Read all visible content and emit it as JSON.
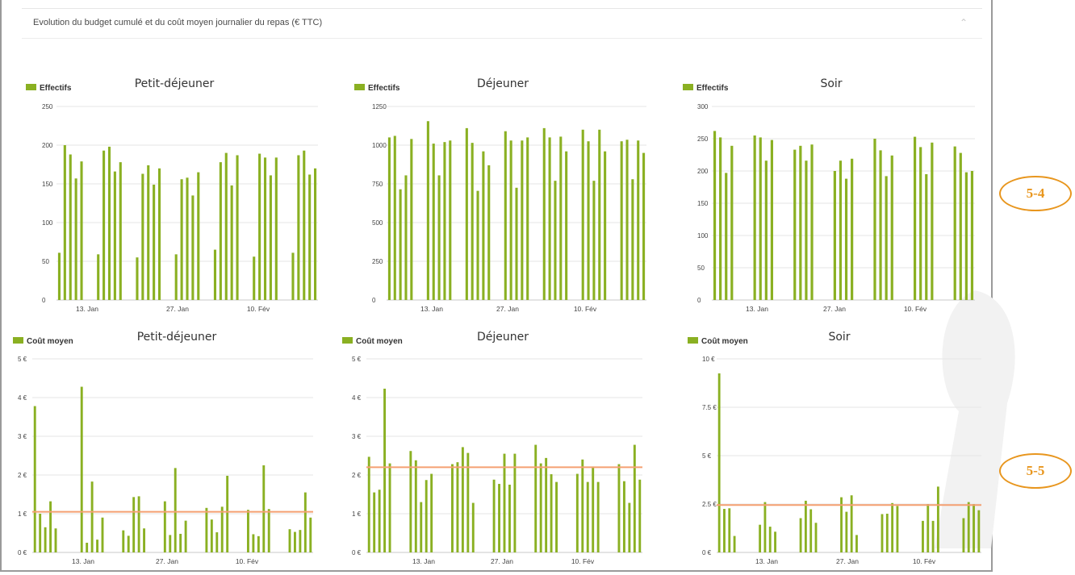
{
  "card": {
    "title": "Evolution du budget cumulé et du coût moyen journalier du repas (€ TTC)",
    "collapse_icon": "chevron-up-icon"
  },
  "callouts": [
    "5-4",
    "5-5"
  ],
  "colors": {
    "bar": "#8ab022",
    "avg_line": "#f5a072",
    "grid": "#e6e6e6"
  },
  "chart_data": [
    {
      "id": "eff-pdj",
      "type": "bar",
      "title": "Petit-déjeuner",
      "legend": "Effectifs",
      "y_ticks": [
        0,
        50,
        100,
        150,
        200,
        250
      ],
      "y_tick_labels": [
        "0",
        "50",
        "100",
        "150",
        "200",
        "250"
      ],
      "ylim": [
        0,
        250
      ],
      "x_ticks": [
        "13. Jan",
        "27. Jan",
        "10. Fév"
      ],
      "values": [
        61,
        200,
        188,
        157,
        179,
        null,
        null,
        59,
        193,
        198,
        166,
        178,
        null,
        null,
        55,
        163,
        174,
        149,
        170,
        null,
        null,
        59,
        156,
        158,
        135,
        165,
        null,
        null,
        65,
        178,
        190,
        148,
        187,
        null,
        null,
        56,
        189,
        184,
        161,
        184,
        null,
        null,
        61,
        187,
        193,
        162,
        170
      ]
    },
    {
      "id": "eff-dej",
      "type": "bar",
      "title": "Déjeuner",
      "legend": "Effectifs",
      "y_ticks": [
        0,
        250,
        500,
        750,
        1000,
        1250
      ],
      "y_tick_labels": [
        "0",
        "250",
        "500",
        "750",
        "1000",
        "1250"
      ],
      "ylim": [
        0,
        1250
      ],
      "x_ticks": [
        "13. Jan",
        "27. Jan",
        "10. Fév"
      ],
      "values": [
        1050,
        1060,
        715,
        805,
        1040,
        null,
        null,
        1155,
        1010,
        805,
        1020,
        1030,
        null,
        null,
        1110,
        1015,
        705,
        960,
        870,
        null,
        null,
        1090,
        1030,
        725,
        1030,
        1050,
        null,
        null,
        1110,
        1050,
        770,
        1055,
        960,
        null,
        null,
        1100,
        1025,
        770,
        1100,
        960,
        null,
        null,
        1025,
        1035,
        780,
        1030,
        950
      ]
    },
    {
      "id": "eff-soir",
      "type": "bar",
      "title": "Soir",
      "legend": "Effectifs",
      "y_ticks": [
        0,
        50,
        100,
        150,
        200,
        250,
        300
      ],
      "y_tick_labels": [
        "0",
        "50",
        "100",
        "150",
        "200",
        "250",
        "300"
      ],
      "ylim": [
        0,
        300
      ],
      "x_ticks": [
        "13. Jan",
        "27. Jan",
        "10. Fév"
      ],
      "values": [
        262,
        252,
        197,
        239,
        null,
        null,
        null,
        255,
        252,
        216,
        248,
        null,
        null,
        null,
        233,
        239,
        216,
        241,
        null,
        null,
        null,
        200,
        216,
        188,
        219,
        null,
        null,
        null,
        250,
        232,
        192,
        224,
        null,
        null,
        null,
        253,
        237,
        195,
        244,
        null,
        null,
        null,
        238,
        228,
        198,
        200
      ]
    },
    {
      "id": "cout-pdj",
      "type": "bar",
      "title": "Petit-déjeuner",
      "legend": "Coût moyen",
      "y_ticks": [
        0,
        1,
        2,
        3,
        4,
        5
      ],
      "y_tick_labels": [
        "0 €",
        "1 €",
        "2 €",
        "3 €",
        "4 €",
        "5 €"
      ],
      "ylim": [
        0,
        5
      ],
      "x_ticks": [
        "13. Jan",
        "27. Jan",
        "10. Fév"
      ],
      "average": 1.05,
      "values": [
        3.78,
        1.0,
        0.65,
        1.32,
        0.62,
        null,
        null,
        null,
        null,
        4.28,
        0.25,
        1.83,
        0.33,
        0.9,
        null,
        null,
        null,
        0.57,
        0.43,
        1.43,
        1.45,
        0.62,
        null,
        null,
        null,
        1.32,
        0.45,
        2.18,
        0.48,
        0.82,
        null,
        null,
        null,
        1.15,
        0.85,
        0.52,
        1.18,
        1.98,
        null,
        null,
        null,
        1.1,
        0.47,
        0.42,
        2.25,
        1.12,
        null,
        null,
        null,
        0.6,
        0.53,
        0.58,
        1.55,
        0.9
      ]
    },
    {
      "id": "cout-dej",
      "type": "bar",
      "title": "Déjeuner",
      "legend": "Coût moyen",
      "y_ticks": [
        0,
        1,
        2,
        3,
        4,
        5
      ],
      "y_tick_labels": [
        "0 €",
        "1 €",
        "2 €",
        "3 €",
        "4 €",
        "5 €"
      ],
      "ylim": [
        0,
        5
      ],
      "x_ticks": [
        "13. Jan",
        "27. Jan",
        "10. Fév"
      ],
      "average": 2.2,
      "values": [
        2.47,
        1.55,
        1.62,
        4.23,
        2.3,
        null,
        null,
        null,
        2.62,
        2.38,
        1.3,
        1.87,
        2.03,
        null,
        null,
        null,
        2.28,
        2.33,
        2.72,
        2.57,
        1.28,
        null,
        null,
        null,
        1.88,
        1.77,
        2.55,
        1.75,
        2.55,
        null,
        null,
        null,
        2.78,
        2.3,
        2.44,
        2.02,
        1.82,
        null,
        null,
        null,
        2.03,
        2.4,
        1.82,
        2.22,
        1.82,
        null,
        null,
        null,
        2.28,
        1.84,
        1.28,
        2.78,
        1.88
      ]
    },
    {
      "id": "cout-soir",
      "type": "bar",
      "title": "Soir",
      "legend": "Coût moyen",
      "y_ticks": [
        0,
        2.5,
        5,
        7.5,
        10
      ],
      "y_tick_labels": [
        "0 €",
        "2.5 €",
        "5 €",
        "7.5 €",
        "10 €"
      ],
      "ylim": [
        0,
        10
      ],
      "x_ticks": [
        "13. Jan",
        "27. Jan",
        "10. Fév"
      ],
      "average": 2.45,
      "values": [
        9.25,
        2.25,
        2.28,
        0.85,
        null,
        null,
        null,
        null,
        1.43,
        2.6,
        1.33,
        1.07,
        null,
        null,
        null,
        null,
        1.77,
        2.67,
        2.23,
        1.53,
        null,
        null,
        null,
        null,
        2.85,
        2.1,
        2.95,
        0.9,
        null,
        null,
        null,
        null,
        1.98,
        2.0,
        2.55,
        2.4,
        null,
        null,
        null,
        null,
        1.63,
        2.5,
        1.63,
        3.4,
        null,
        null,
        null,
        null,
        1.77,
        2.6,
        2.5,
        2.18
      ]
    }
  ]
}
